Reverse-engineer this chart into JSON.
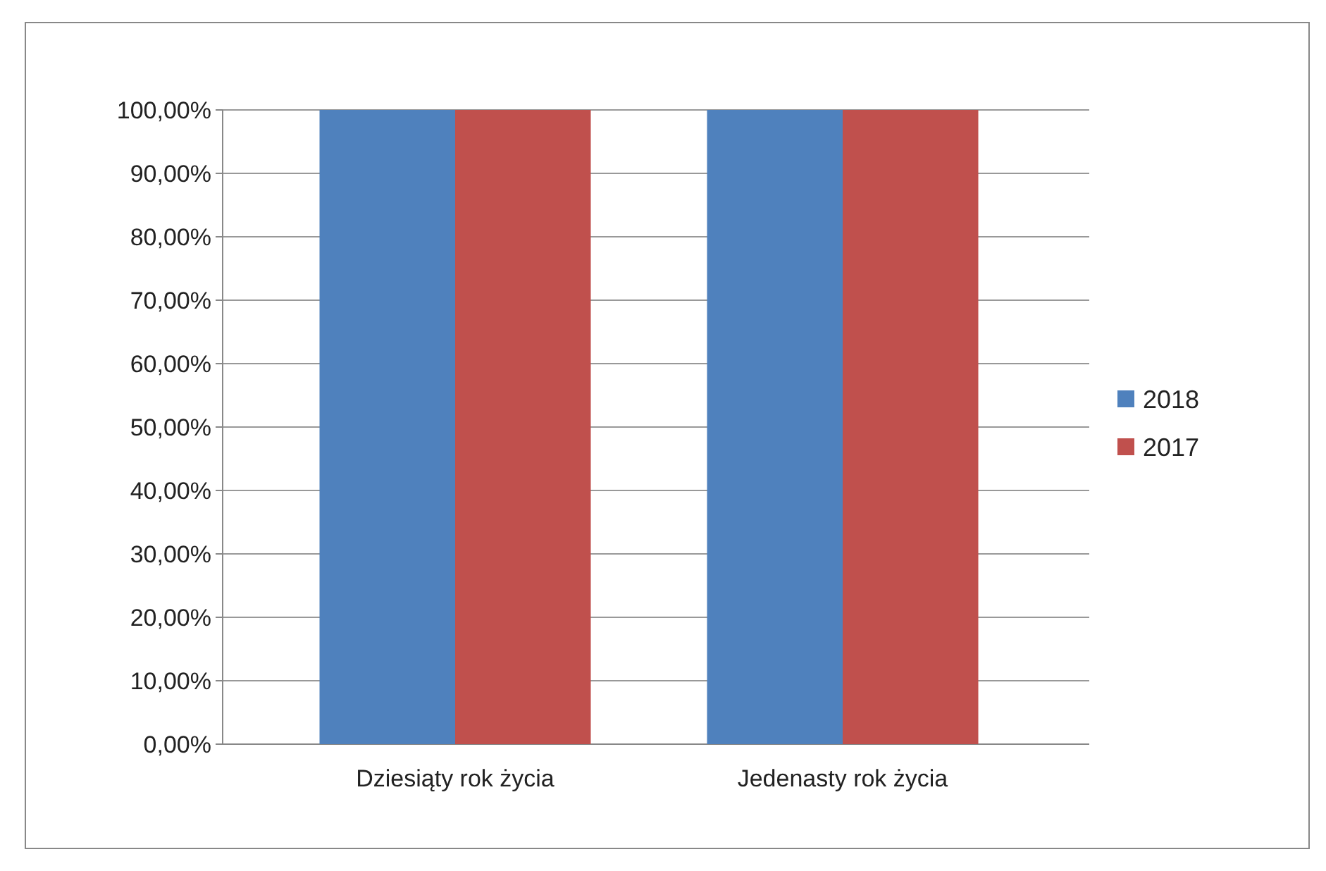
{
  "chart_data": {
    "type": "bar",
    "categories": [
      "Dziesiąty rok życia",
      "Jedenasty rok życia"
    ],
    "series": [
      {
        "name": "2018",
        "color": "#4f81bd",
        "values": [
          100,
          100
        ]
      },
      {
        "name": "2017",
        "color": "#c0504d",
        "values": [
          100,
          100
        ]
      }
    ],
    "ylim": [
      0,
      100
    ],
    "yticks": [
      {
        "value": 0,
        "label": "0,00%"
      },
      {
        "value": 10,
        "label": "10,00%"
      },
      {
        "value": 20,
        "label": "20,00%"
      },
      {
        "value": 30,
        "label": "30,00%"
      },
      {
        "value": 40,
        "label": "40,00%"
      },
      {
        "value": 50,
        "label": "50,00%"
      },
      {
        "value": 60,
        "label": "60,00%"
      },
      {
        "value": 70,
        "label": "70,00%"
      },
      {
        "value": 80,
        "label": "80,00%"
      },
      {
        "value": 90,
        "label": "90,00%"
      },
      {
        "value": 100,
        "label": "100,00%"
      }
    ],
    "grid": "y",
    "legend": "right"
  }
}
